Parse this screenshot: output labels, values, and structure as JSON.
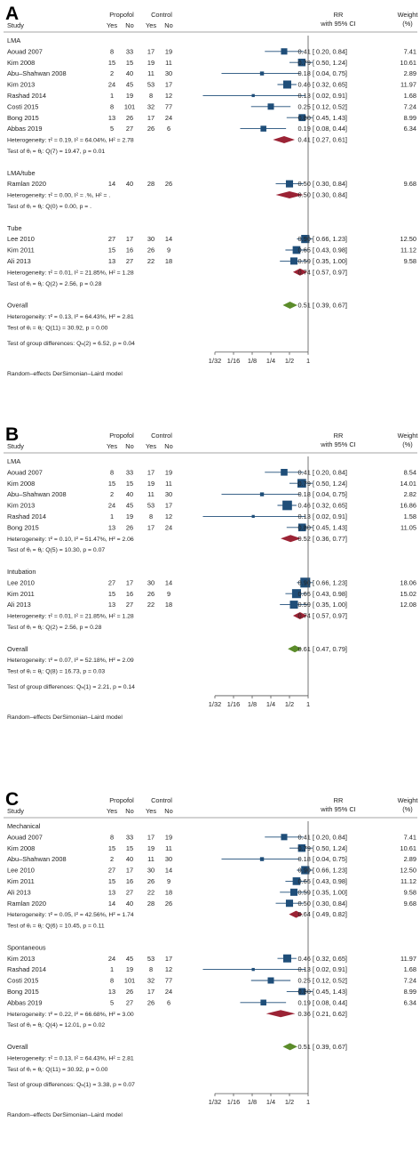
{
  "header": {
    "study": "Study",
    "propofol": "Propofol",
    "control": "Control",
    "yes": "Yes",
    "no": "No",
    "rr": "RR",
    "ci": "with 95% CI",
    "weight": "Weight",
    "pct": "(%)"
  },
  "axis_ticks": [
    "1/32",
    "1/16",
    "1/8",
    "1/4",
    "1/2",
    "1"
  ],
  "colors": {
    "box": "#1f4e79",
    "diamond_subgroup": "#9b2335",
    "diamond_overall": "#5b8c2a",
    "line": "#1f4e79"
  },
  "chart_data": [
    {
      "type": "forest",
      "panel": "A",
      "scale": "log2",
      "xlim": [
        0.03125,
        1
      ],
      "footer": "Random–effects DerSimonian–Laird model",
      "groups": [
        {
          "name": "LMA",
          "studies": [
            {
              "study": "Aouad 2007",
              "py": "8",
              "pn": "33",
              "cy": "17",
              "cn": "19",
              "rr": 0.41,
              "lo": 0.2,
              "hi": 0.84,
              "ci": "0.41 [  0.20,  0.84]",
              "weight": "7.41"
            },
            {
              "study": "Kim 2008",
              "py": "15",
              "pn": "15",
              "cy": "19",
              "cn": "11",
              "rr": 0.79,
              "lo": 0.5,
              "hi": 1.24,
              "ci": "0.79 [  0.50,  1.24]",
              "weight": "10.61"
            },
            {
              "study": "Abu–Shahwan 2008",
              "py": "2",
              "pn": "40",
              "cy": "11",
              "cn": "30",
              "rr": 0.18,
              "lo": 0.04,
              "hi": 0.75,
              "ci": "0.18 [  0.04,  0.75]",
              "weight": "2.89"
            },
            {
              "study": "Kim 2013",
              "py": "24",
              "pn": "45",
              "cy": "53",
              "cn": "17",
              "rr": 0.46,
              "lo": 0.32,
              "hi": 0.65,
              "ci": "0.46 [  0.32,  0.65]",
              "weight": "11.97"
            },
            {
              "study": "Rashad 2014",
              "py": "1",
              "pn": "19",
              "cy": "8",
              "cn": "12",
              "rr": 0.13,
              "lo": 0.02,
              "hi": 0.91,
              "ci": "0.13 [  0.02,  0.91]",
              "weight": "1.68"
            },
            {
              "study": "Costi 2015",
              "py": "8",
              "pn": "101",
              "cy": "32",
              "cn": "77",
              "rr": 0.25,
              "lo": 0.12,
              "hi": 0.52,
              "ci": "0.25 [  0.12,  0.52]",
              "weight": "7.24"
            },
            {
              "study": "Bong 2015",
              "py": "13",
              "pn": "26",
              "cy": "17",
              "cn": "24",
              "rr": 0.8,
              "lo": 0.45,
              "hi": 1.43,
              "ci": "0.80 [  0.45,  1.43]",
              "weight": "8.99"
            },
            {
              "study": "Abbas 2019",
              "py": "5",
              "pn": "27",
              "cy": "26",
              "cn": "6",
              "rr": 0.19,
              "lo": 0.08,
              "hi": 0.44,
              "ci": "0.19 [  0.08,  0.44]",
              "weight": "6.34"
            }
          ],
          "het": "Heterogeneity: τ² = 0.19, I² = 64.04%, H² = 2.78",
          "test": "Test of θᵢ = θⱼ: Q(7) = 19.47, p = 0.01",
          "pooled": {
            "rr": 0.41,
            "lo": 0.27,
            "hi": 0.61,
            "ci": "0.41 [  0.27,  0.61]"
          }
        },
        {
          "name": "LMA/tube",
          "studies": [
            {
              "study": "Ramlan 2020",
              "py": "14",
              "pn": "40",
              "cy": "28",
              "cn": "26",
              "rr": 0.5,
              "lo": 0.3,
              "hi": 0.84,
              "ci": "0.50 [  0.30,  0.84]",
              "weight": "9.68"
            }
          ],
          "het": "Heterogeneity: τ² = 0.00, I² = .%, H² = .",
          "test": "Test of θᵢ = θⱼ: Q(0) = 0.00, p = .",
          "pooled": {
            "rr": 0.5,
            "lo": 0.3,
            "hi": 0.84,
            "ci": "0.50 [  0.30,  0.84]"
          }
        },
        {
          "name": "Tube",
          "studies": [
            {
              "study": "Lee 2010",
              "py": "27",
              "pn": "17",
              "cy": "30",
              "cn": "14",
              "rr": 0.9,
              "lo": 0.66,
              "hi": 1.23,
              "ci": "0.90 [  0.66,  1.23]",
              "weight": "12.50"
            },
            {
              "study": "Kim 2011",
              "py": "15",
              "pn": "16",
              "cy": "26",
              "cn": "9",
              "rr": 0.65,
              "lo": 0.43,
              "hi": 0.98,
              "ci": "0.65 [  0.43,  0.98]",
              "weight": "11.12"
            },
            {
              "study": "Ali 2013",
              "py": "13",
              "pn": "27",
              "cy": "22",
              "cn": "18",
              "rr": 0.59,
              "lo": 0.35,
              "hi": 1.0,
              "ci": "0.59 [  0.35,  1.00]",
              "weight": "9.58"
            }
          ],
          "het": "Heterogeneity: τ² = 0.01, I² = 21.85%, H² = 1.28",
          "test": "Test of θᵢ = θⱼ: Q(2) = 2.56, p = 0.28",
          "pooled": {
            "rr": 0.74,
            "lo": 0.57,
            "hi": 0.97,
            "ci": "0.74 [  0.57,  0.97]"
          }
        }
      ],
      "overall": {
        "label": "Overall",
        "het": "Heterogeneity: τ² = 0.13, I² = 64.43%, H² = 2.81",
        "test": "Test of θᵢ = θⱼ: Q(11) = 30.92, p = 0.00",
        "group_test": "Test of group differences: Qₕ(2) = 6.52, p = 0.04",
        "rr": 0.51,
        "lo": 0.39,
        "hi": 0.67,
        "ci": "0.51 [  0.39,  0.67]"
      }
    },
    {
      "type": "forest",
      "panel": "B",
      "scale": "log2",
      "xlim": [
        0.03125,
        1
      ],
      "footer": "Random–effects DerSimonian–Laird model",
      "groups": [
        {
          "name": "LMA",
          "studies": [
            {
              "study": "Aouad 2007",
              "py": "8",
              "pn": "33",
              "cy": "17",
              "cn": "19",
              "rr": 0.41,
              "lo": 0.2,
              "hi": 0.84,
              "ci": "0.41 [  0.20,  0.84]",
              "weight": "8.54"
            },
            {
              "study": "Kim 2008",
              "py": "15",
              "pn": "15",
              "cy": "19",
              "cn": "11",
              "rr": 0.79,
              "lo": 0.5,
              "hi": 1.24,
              "ci": "0.79 [  0.50,  1.24]",
              "weight": "14.01"
            },
            {
              "study": "Abu–Shahwan 2008",
              "py": "2",
              "pn": "40",
              "cy": "11",
              "cn": "30",
              "rr": 0.18,
              "lo": 0.04,
              "hi": 0.75,
              "ci": "0.18 [  0.04,  0.75]",
              "weight": "2.82"
            },
            {
              "study": "Kim 2013",
              "py": "24",
              "pn": "45",
              "cy": "53",
              "cn": "17",
              "rr": 0.46,
              "lo": 0.32,
              "hi": 0.65,
              "ci": "0.46 [  0.32,  0.65]",
              "weight": "16.86"
            },
            {
              "study": "Rashad 2014",
              "py": "1",
              "pn": "19",
              "cy": "8",
              "cn": "12",
              "rr": 0.13,
              "lo": 0.02,
              "hi": 0.91,
              "ci": "0.13 [  0.02,  0.91]",
              "weight": "1.58"
            },
            {
              "study": "Bong 2015",
              "py": "13",
              "pn": "26",
              "cy": "17",
              "cn": "24",
              "rr": 0.8,
              "lo": 0.45,
              "hi": 1.43,
              "ci": "0.80 [  0.45,  1.43]",
              "weight": "11.05"
            }
          ],
          "het": "Heterogeneity: τ² = 0.10, I² = 51.47%, H² = 2.06",
          "test": "Test of θᵢ = θⱼ: Q(5) = 10.30, p = 0.07",
          "pooled": {
            "rr": 0.52,
            "lo": 0.36,
            "hi": 0.77,
            "ci": "0.52 [  0.36,  0.77]"
          }
        },
        {
          "name": "Intubation",
          "studies": [
            {
              "study": "Lee 2010",
              "py": "27",
              "pn": "17",
              "cy": "30",
              "cn": "14",
              "rr": 0.9,
              "lo": 0.66,
              "hi": 1.23,
              "ci": "0.90 [  0.66,  1.23]",
              "weight": "18.06"
            },
            {
              "study": "Kim 2011",
              "py": "15",
              "pn": "16",
              "cy": "26",
              "cn": "9",
              "rr": 0.65,
              "lo": 0.43,
              "hi": 0.98,
              "ci": "0.65 [  0.43,  0.98]",
              "weight": "15.02"
            },
            {
              "study": "Ali 2013",
              "py": "13",
              "pn": "27",
              "cy": "22",
              "cn": "18",
              "rr": 0.59,
              "lo": 0.35,
              "hi": 1.0,
              "ci": "0.59 [  0.35,  1.00]",
              "weight": "12.08"
            }
          ],
          "het": "Heterogeneity: τ² = 0.01, I² = 21.85%, H² = 1.28",
          "test": "Test of θᵢ = θⱼ: Q(2) = 2.56, p = 0.28",
          "pooled": {
            "rr": 0.74,
            "lo": 0.57,
            "hi": 0.97,
            "ci": "0.74 [  0.57,  0.97]"
          }
        }
      ],
      "overall": {
        "label": "Overall",
        "het": "Heterogeneity: τ² = 0.07, I² = 52.18%, H² = 2.09",
        "test": "Test of θᵢ = θⱼ: Q(8) = 16.73, p = 0.03",
        "group_test": "Test of group differences: Qₕ(1) = 2.21, p = 0.14",
        "rr": 0.61,
        "lo": 0.47,
        "hi": 0.79,
        "ci": "0.61 [  0.47,  0.79]"
      }
    },
    {
      "type": "forest",
      "panel": "C",
      "scale": "log2",
      "xlim": [
        0.03125,
        1
      ],
      "footer": "Random–effects DerSimonian–Laird model",
      "groups": [
        {
          "name": "Mechanical",
          "studies": [
            {
              "study": "Aouad 2007",
              "py": "8",
              "pn": "33",
              "cy": "17",
              "cn": "19",
              "rr": 0.41,
              "lo": 0.2,
              "hi": 0.84,
              "ci": "0.41 [  0.20,  0.84]",
              "weight": "7.41"
            },
            {
              "study": "Kim 2008",
              "py": "15",
              "pn": "15",
              "cy": "19",
              "cn": "11",
              "rr": 0.79,
              "lo": 0.5,
              "hi": 1.24,
              "ci": "0.79 [  0.50,  1.24]",
              "weight": "10.61"
            },
            {
              "study": "Abu–Shahwan 2008",
              "py": "2",
              "pn": "40",
              "cy": "11",
              "cn": "30",
              "rr": 0.18,
              "lo": 0.04,
              "hi": 0.75,
              "ci": "0.18 [  0.04,  0.75]",
              "weight": "2.89"
            },
            {
              "study": "Lee 2010",
              "py": "27",
              "pn": "17",
              "cy": "30",
              "cn": "14",
              "rr": 0.9,
              "lo": 0.66,
              "hi": 1.23,
              "ci": "0.90 [  0.66,  1.23]",
              "weight": "12.50"
            },
            {
              "study": "Kim 2011",
              "py": "15",
              "pn": "16",
              "cy": "26",
              "cn": "9",
              "rr": 0.65,
              "lo": 0.43,
              "hi": 0.98,
              "ci": "0.65 [  0.43,  0.98]",
              "weight": "11.12"
            },
            {
              "study": "Ali 2013",
              "py": "13",
              "pn": "27",
              "cy": "22",
              "cn": "18",
              "rr": 0.59,
              "lo": 0.35,
              "hi": 1.0,
              "ci": "0.59 [  0.35,  1.00]",
              "weight": "9.58"
            },
            {
              "study": "Ramlan 2020",
              "py": "14",
              "pn": "40",
              "cy": "28",
              "cn": "26",
              "rr": 0.5,
              "lo": 0.3,
              "hi": 0.84,
              "ci": "0.50 [  0.30,  0.84]",
              "weight": "9.68"
            }
          ],
          "het": "Heterogeneity: τ² = 0.05, I² = 42.56%, H² = 1.74",
          "test": "Test of θᵢ = θⱼ: Q(6) = 10.45, p = 0.11",
          "pooled": {
            "rr": 0.64,
            "lo": 0.49,
            "hi": 0.82,
            "ci": "0.64 [  0.49,  0.82]"
          }
        },
        {
          "name": "Spontaneous",
          "studies": [
            {
              "study": "Kim 2013",
              "py": "24",
              "pn": "45",
              "cy": "53",
              "cn": "17",
              "rr": 0.46,
              "lo": 0.32,
              "hi": 0.65,
              "ci": "0.46 [  0.32,  0.65]",
              "weight": "11.97"
            },
            {
              "study": "Rashad 2014",
              "py": "1",
              "pn": "19",
              "cy": "8",
              "cn": "12",
              "rr": 0.13,
              "lo": 0.02,
              "hi": 0.91,
              "ci": "0.13 [  0.02,  0.91]",
              "weight": "1.68"
            },
            {
              "study": "Costi 2015",
              "py": "8",
              "pn": "101",
              "cy": "32",
              "cn": "77",
              "rr": 0.25,
              "lo": 0.12,
              "hi": 0.52,
              "ci": "0.25 [  0.12,  0.52]",
              "weight": "7.24"
            },
            {
              "study": "Bong 2015",
              "py": "13",
              "pn": "26",
              "cy": "17",
              "cn": "24",
              "rr": 0.8,
              "lo": 0.45,
              "hi": 1.43,
              "ci": "0.80 [  0.45,  1.43]",
              "weight": "8.99"
            },
            {
              "study": "Abbas 2019",
              "py": "5",
              "pn": "27",
              "cy": "26",
              "cn": "6",
              "rr": 0.19,
              "lo": 0.08,
              "hi": 0.44,
              "ci": "0.19 [  0.08,  0.44]",
              "weight": "6.34"
            }
          ],
          "het": "Heterogeneity: τ² = 0.22, I² = 66.68%, H² = 3.00",
          "test": "Test of θᵢ = θⱼ: Q(4) = 12.01, p = 0.02",
          "pooled": {
            "rr": 0.36,
            "lo": 0.21,
            "hi": 0.62,
            "ci": "0.36 [  0.21,  0.62]"
          }
        }
      ],
      "overall": {
        "label": "Overall",
        "het": "Heterogeneity: τ² = 0.13, I² = 64.43%, H² = 2.81",
        "test": "Test of θᵢ = θⱼ: Q(11) = 30.92, p = 0.00",
        "group_test": "Test of group differences: Qₕ(1) = 3.38, p = 0.07",
        "rr": 0.51,
        "lo": 0.39,
        "hi": 0.67,
        "ci": "0.51 [  0.39,  0.67]"
      }
    }
  ]
}
